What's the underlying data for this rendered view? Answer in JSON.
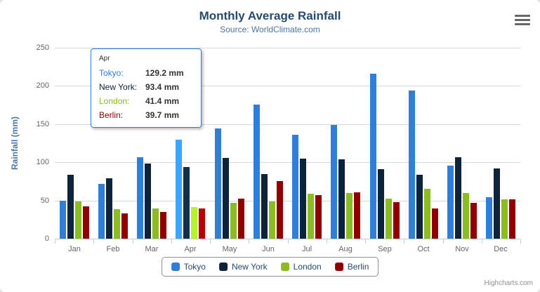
{
  "chart": {
    "title": "Monthly Average Rainfall",
    "subtitle": "Source: WorldClimate.com",
    "y_axis_title": "Rainfall (mm)",
    "credits": "Highcharts.com"
  },
  "chart_data": {
    "type": "bar",
    "title": "Monthly Average Rainfall",
    "subtitle": "Source: WorldClimate.com",
    "xlabel": "",
    "ylabel": "Rainfall (mm)",
    "ylim": [
      0,
      250
    ],
    "yticks": [
      0,
      50,
      100,
      150,
      200,
      250
    ],
    "grid": true,
    "legend_position": "bottom",
    "categories": [
      "Jan",
      "Feb",
      "Mar",
      "Apr",
      "May",
      "Jun",
      "Jul",
      "Aug",
      "Sep",
      "Oct",
      "Nov",
      "Dec"
    ],
    "series": [
      {
        "name": "Tokyo",
        "color": "#2f7ed8",
        "values": [
          49.9,
          71.5,
          106.4,
          129.2,
          144.0,
          176.0,
          135.6,
          148.5,
          216.4,
          194.1,
          95.6,
          54.4
        ]
      },
      {
        "name": "New York",
        "color": "#0d233a",
        "values": [
          83.6,
          78.8,
          98.5,
          93.4,
          106.0,
          84.5,
          105.0,
          104.3,
          91.2,
          83.5,
          106.6,
          92.3
        ]
      },
      {
        "name": "London",
        "color": "#8bbc21",
        "values": [
          48.9,
          38.8,
          39.3,
          41.4,
          47.0,
          48.3,
          59.0,
          59.6,
          52.4,
          65.2,
          59.3,
          51.2
        ]
      },
      {
        "name": "Berlin",
        "color": "#910000",
        "values": [
          42.4,
          33.2,
          34.5,
          39.7,
          52.6,
          75.5,
          57.4,
          60.4,
          47.6,
          39.1,
          46.8,
          51.1
        ]
      }
    ],
    "hover_category_index": 3
  },
  "tooltip": {
    "category": "Apr",
    "rows": [
      {
        "label": "Tokyo:",
        "value": "129.2 mm",
        "color": "#2f7ed8"
      },
      {
        "label": "New York:",
        "value": "93.4 mm",
        "color": "#0d233a"
      },
      {
        "label": "London:",
        "value": "41.4 mm",
        "color": "#8bbc21"
      },
      {
        "label": "Berlin:",
        "value": "39.7 mm",
        "color": "#910000"
      }
    ]
  }
}
